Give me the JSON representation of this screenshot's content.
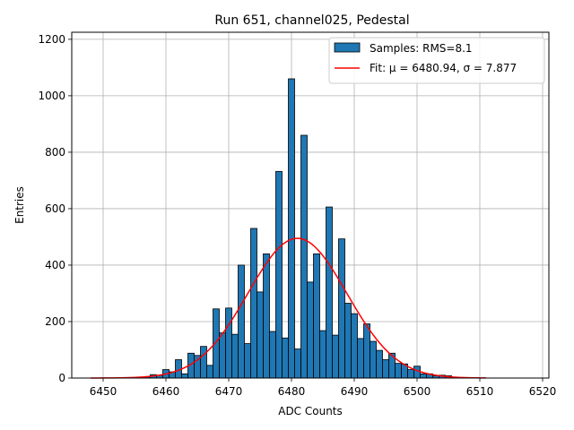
{
  "chart_data": {
    "type": "bar",
    "title": "Run 651, channel025, Pedestal",
    "xlabel": "ADC Counts",
    "ylabel": "Entries",
    "xlim": [
      6445,
      6521
    ],
    "ylim": [
      0,
      1225
    ],
    "xticks": [
      6450,
      6460,
      6470,
      6480,
      6490,
      6500,
      6510,
      6520
    ],
    "yticks": [
      0,
      200,
      400,
      600,
      800,
      1000,
      1200
    ],
    "grid": true,
    "legend_placement": "top-right",
    "bar_width": 1,
    "series": [
      {
        "name": "Samples: RMS=8.1",
        "color": "#1f77b4",
        "x": [
          6457,
          6458,
          6459,
          6460,
          6461,
          6462,
          6463,
          6464,
          6465,
          6466,
          6467,
          6468,
          6469,
          6470,
          6471,
          6472,
          6473,
          6474,
          6475,
          6476,
          6477,
          6478,
          6479,
          6480,
          6481,
          6482,
          6483,
          6484,
          6485,
          6486,
          6487,
          6488,
          6489,
          6490,
          6491,
          6492,
          6493,
          6494,
          6495,
          6496,
          6497,
          6498,
          6499,
          6500,
          6501,
          6502,
          6503,
          6504,
          6505
        ],
        "values": [
          4,
          12,
          10,
          30,
          22,
          65,
          15,
          88,
          80,
          112,
          45,
          245,
          160,
          248,
          155,
          400,
          122,
          530,
          305,
          440,
          165,
          732,
          142,
          1060,
          103,
          860,
          340,
          440,
          168,
          606,
          152,
          493,
          265,
          228,
          140,
          192,
          130,
          98,
          65,
          88,
          52,
          50,
          30,
          42,
          15,
          15,
          8,
          10,
          8
        ]
      }
    ],
    "fit": {
      "name": "Fit: μ = 6480.94, σ = 7.877",
      "color": "#ff0000",
      "mu": 6480.94,
      "sigma": 7.877,
      "amplitude": 495,
      "x_range": [
        6448,
        6511
      ]
    }
  }
}
